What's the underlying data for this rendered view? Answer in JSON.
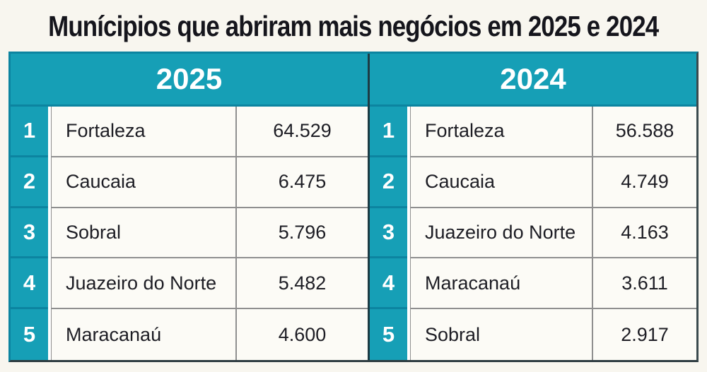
{
  "title": "Munícipios que abriram mais negócios em 2025 e 2024",
  "colors": {
    "teal": "#169fb6",
    "teal_dark": "#0c84a0",
    "page_background": "#f8f6ef",
    "row_background": "#fcfbf6",
    "title_text": "#15151c",
    "body_text": "#1d1d24",
    "row_separator": "#8f8f8f",
    "half_divider": "#1d3b44"
  },
  "chart_data": {
    "type": "table",
    "title": "Munícipios que abriram mais negócios em 2025 e 2024",
    "tables": [
      {
        "year": "2025",
        "rows": [
          {
            "rank": "1",
            "name": "Fortaleza",
            "value": "64.529"
          },
          {
            "rank": "2",
            "name": "Caucaia",
            "value": "6.475"
          },
          {
            "rank": "3",
            "name": "Sobral",
            "value": "5.796"
          },
          {
            "rank": "4",
            "name": "Juazeiro do Norte",
            "value": "5.482"
          },
          {
            "rank": "5",
            "name": "Maracanaú",
            "value": "4.600"
          }
        ]
      },
      {
        "year": "2024",
        "rows": [
          {
            "rank": "1",
            "name": "Fortaleza",
            "value": "56.588"
          },
          {
            "rank": "2",
            "name": "Caucaia",
            "value": "4.749"
          },
          {
            "rank": "3",
            "name": "Juazeiro do Norte",
            "value": "4.163"
          },
          {
            "rank": "4",
            "name": "Maracanaú",
            "value": "3.611"
          },
          {
            "rank": "5",
            "name": "Sobral",
            "value": "2.917"
          }
        ]
      }
    ]
  }
}
